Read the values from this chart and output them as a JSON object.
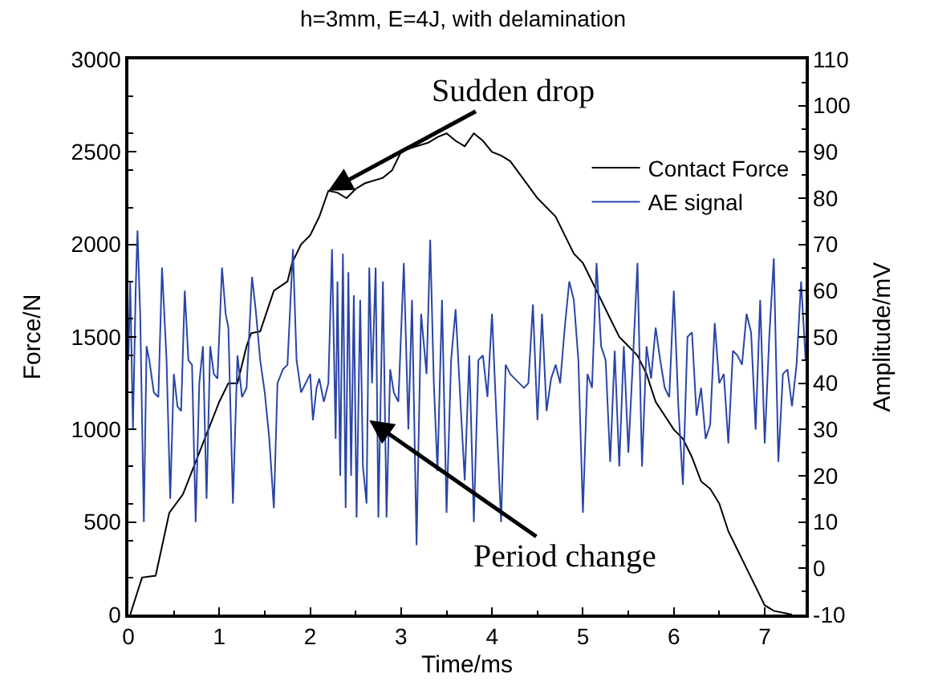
{
  "chart_data": {
    "type": "line",
    "title": "h=3mm, E=4J, with delamination",
    "xlabel": "Time/ms",
    "ylabel": "Force/N",
    "y2label": "Amplitude/mV",
    "xlim": [
      0,
      7.45
    ],
    "xticks": [
      0,
      1,
      2,
      3,
      4,
      5,
      6,
      7
    ],
    "ylim": [
      0,
      3000
    ],
    "yticks": [
      0,
      500,
      1000,
      1500,
      2000,
      2500,
      3000
    ],
    "y2lim": [
      -10,
      110
    ],
    "y2ticks": [
      -10,
      0,
      10,
      20,
      30,
      40,
      50,
      60,
      70,
      80,
      90,
      100,
      110
    ],
    "legend": "top right",
    "marker": "none",
    "line_style": "solid",
    "series": [
      {
        "name": "Contact Force",
        "color": "#000000",
        "x": [
          0.02,
          0.15,
          0.3,
          0.45,
          0.6,
          0.8,
          1.0,
          1.1,
          1.2,
          1.3,
          1.35,
          1.45,
          1.6,
          1.75,
          1.8,
          1.9,
          2.0,
          2.1,
          2.2,
          2.3,
          2.4,
          2.5,
          2.6,
          2.8,
          2.9,
          3.0,
          3.1,
          3.3,
          3.4,
          3.5,
          3.6,
          3.7,
          3.8,
          3.9,
          4.0,
          4.1,
          4.2,
          4.35,
          4.5,
          4.6,
          4.7,
          4.8,
          4.9,
          5.0,
          5.1,
          5.2,
          5.3,
          5.4,
          5.5,
          5.6,
          5.7,
          5.8,
          6.0,
          6.1,
          6.2,
          6.3,
          6.4,
          6.5,
          6.6,
          6.7,
          6.8,
          6.9,
          7.0,
          7.1,
          7.3
        ],
        "values": [
          0,
          200,
          210,
          550,
          650,
          900,
          1150,
          1250,
          1250,
          1450,
          1520,
          1530,
          1750,
          1800,
          1900,
          2000,
          2050,
          2150,
          2290,
          2280,
          2250,
          2300,
          2330,
          2360,
          2400,
          2500,
          2520,
          2550,
          2580,
          2600,
          2560,
          2530,
          2600,
          2560,
          2500,
          2480,
          2450,
          2350,
          2250,
          2200,
          2150,
          2050,
          1950,
          1900,
          1800,
          1700,
          1600,
          1500,
          1450,
          1400,
          1300,
          1150,
          1000,
          950,
          850,
          720,
          680,
          600,
          450,
          350,
          250,
          150,
          50,
          20,
          0
        ]
      },
      {
        "name": "AE signal",
        "color": "#2a45a8",
        "axis": "y2",
        "x": [
          0.0,
          0.02,
          0.05,
          0.08,
          0.1,
          0.13,
          0.17,
          0.2,
          0.23,
          0.28,
          0.33,
          0.37,
          0.42,
          0.46,
          0.5,
          0.54,
          0.58,
          0.62,
          0.66,
          0.7,
          0.74,
          0.78,
          0.82,
          0.86,
          0.9,
          0.94,
          0.98,
          1.03,
          1.07,
          1.1,
          1.15,
          1.2,
          1.25,
          1.3,
          1.36,
          1.4,
          1.45,
          1.5,
          1.55,
          1.6,
          1.64,
          1.7,
          1.75,
          1.81,
          1.85,
          1.9,
          1.95,
          2.0,
          2.03,
          2.07,
          2.1,
          2.15,
          2.2,
          2.24,
          2.28,
          2.3,
          2.33,
          2.36,
          2.39,
          2.42,
          2.45,
          2.48,
          2.51,
          2.55,
          2.58,
          2.62,
          2.65,
          2.68,
          2.72,
          2.75,
          2.8,
          2.84,
          2.88,
          2.92,
          2.97,
          3.03,
          3.08,
          3.12,
          3.17,
          3.22,
          3.28,
          3.32,
          3.36,
          3.4,
          3.45,
          3.5,
          3.55,
          3.6,
          3.65,
          3.7,
          3.75,
          3.8,
          3.85,
          3.9,
          3.95,
          4.0,
          4.05,
          4.1,
          4.15,
          4.2,
          4.25,
          4.3,
          4.35,
          4.4,
          4.45,
          4.5,
          4.55,
          4.6,
          4.65,
          4.7,
          4.75,
          4.8,
          4.85,
          4.9,
          4.95,
          5.0,
          5.05,
          5.1,
          5.15,
          5.2,
          5.25,
          5.3,
          5.35,
          5.4,
          5.45,
          5.5,
          5.55,
          5.6,
          5.65,
          5.7,
          5.75,
          5.8,
          5.85,
          5.9,
          5.95,
          6.0,
          6.05,
          6.1,
          6.15,
          6.2,
          6.25,
          6.3,
          6.35,
          6.4,
          6.45,
          6.5,
          6.55,
          6.6,
          6.65,
          6.7,
          6.75,
          6.8,
          6.85,
          6.9,
          6.95,
          7.0,
          7.05,
          7.1,
          7.15,
          7.2,
          7.25,
          7.3,
          7.35,
          7.4,
          7.45
        ],
        "values": [
          45,
          62,
          30,
          60,
          73,
          55,
          10,
          48,
          45,
          38,
          37,
          65,
          45,
          15,
          42,
          35,
          34,
          60,
          45,
          44,
          10,
          40,
          48,
          15,
          48,
          42,
          41,
          65,
          55,
          52,
          14,
          46,
          37,
          39,
          63,
          56,
          45,
          38,
          28,
          13,
          40,
          43,
          44,
          69,
          45,
          38,
          40,
          42,
          32,
          39,
          41,
          36,
          40,
          69,
          28,
          62,
          20,
          68,
          13,
          64,
          20,
          59,
          11,
          58,
          22,
          14,
          65,
          40,
          65,
          11,
          62,
          11,
          43,
          38,
          36,
          66,
          30,
          58,
          5,
          55,
          42,
          71,
          40,
          21,
          58,
          12,
          45,
          56,
          37,
          19,
          46,
          10,
          45,
          46,
          37,
          55,
          32,
          10,
          44,
          42,
          41,
          40,
          39,
          40,
          57,
          32,
          55,
          34,
          41,
          44,
          40,
          52,
          62,
          58,
          45,
          12,
          42,
          39,
          66,
          48,
          45,
          23,
          47,
          22,
          48,
          25,
          45,
          66,
          22,
          48,
          41,
          52,
          45,
          39,
          37,
          60,
          35,
          18,
          50,
          51,
          33,
          39,
          28,
          31,
          53,
          40,
          42,
          27,
          47,
          46,
          44,
          55,
          51,
          30,
          58,
          27,
          50,
          67,
          23,
          42,
          43,
          35,
          44,
          62,
          45
        ]
      }
    ],
    "annotations": [
      {
        "text": "Sudden drop",
        "x": 2.2,
        "y": 2290
      },
      {
        "text": "Period change",
        "x": 2.65,
        "y": 1050
      }
    ]
  }
}
